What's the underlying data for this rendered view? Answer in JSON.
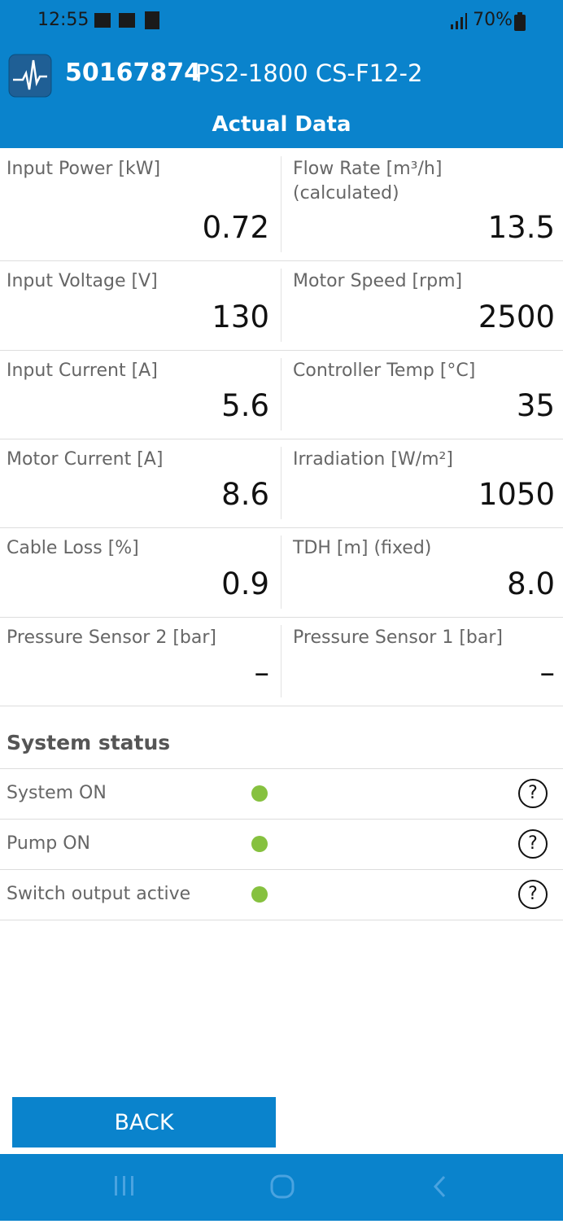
{
  "status_bar": {
    "time": "12:55",
    "battery": "70%"
  },
  "header": {
    "device_id": "50167874",
    "model": "PS2-1800 CS-F12-2",
    "title": "Actual Data"
  },
  "readings": [
    [
      {
        "label": "Input Power [kW]",
        "value": "0.72"
      },
      {
        "label": "Flow Rate [m³/h]",
        "sublabel": "(calculated)",
        "value": "13.5"
      }
    ],
    [
      {
        "label": "Input Voltage [V]",
        "value": "130"
      },
      {
        "label": "Motor Speed [rpm]",
        "value": "2500"
      }
    ],
    [
      {
        "label": "Input Current [A]",
        "value": "5.6"
      },
      {
        "label": "Controller Temp [°C]",
        "value": "35"
      }
    ],
    [
      {
        "label": "Motor Current [A]",
        "value": "8.6"
      },
      {
        "label": "Irradiation [W/m²]",
        "value": "1050"
      }
    ],
    [
      {
        "label": "Cable Loss [%]",
        "value": "0.9"
      },
      {
        "label": "TDH [m] (fixed)",
        "value": "8.0"
      }
    ],
    [
      {
        "label": "Pressure Sensor 2 [bar]",
        "value": "–"
      },
      {
        "label": "Pressure Sensor 1 [bar]",
        "value": "–"
      }
    ]
  ],
  "system_status": {
    "title": "System status",
    "items": [
      "System ON",
      "Pump ON",
      "Switch output active"
    ]
  },
  "button": "BACK"
}
